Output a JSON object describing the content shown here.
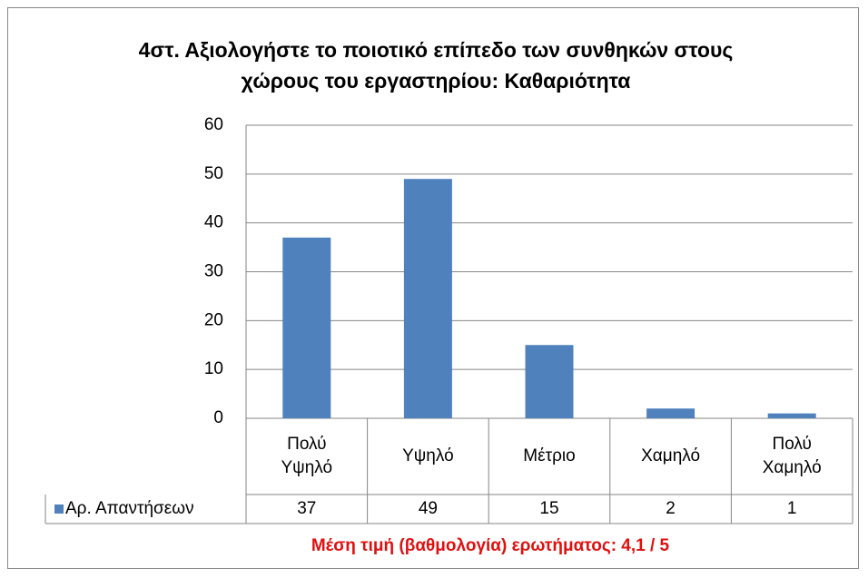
{
  "chart_data": {
    "type": "bar",
    "title": "4στ. Αξιολογήστε το ποιοτικό επίπεδο των συνθηκών στους χώρους του εργαστηρίου: Καθαριότητα",
    "categories": [
      "Πολύ Υψηλό",
      "Υψηλό",
      "Μέτριο",
      "Χαμηλό",
      "Πολύ Χαμηλό"
    ],
    "series": [
      {
        "name": "Αρ. Απαντήσεων",
        "color": "#4f81bd",
        "values": [
          37,
          49,
          15,
          2,
          1
        ]
      }
    ],
    "ylim": [
      0,
      60
    ],
    "yticks": [
      0,
      10,
      20,
      30,
      40,
      50,
      60
    ],
    "grid": true,
    "annotation": "Μέση τιμή (βαθμολογία) ερωτήματος: 4,1 / 5"
  }
}
